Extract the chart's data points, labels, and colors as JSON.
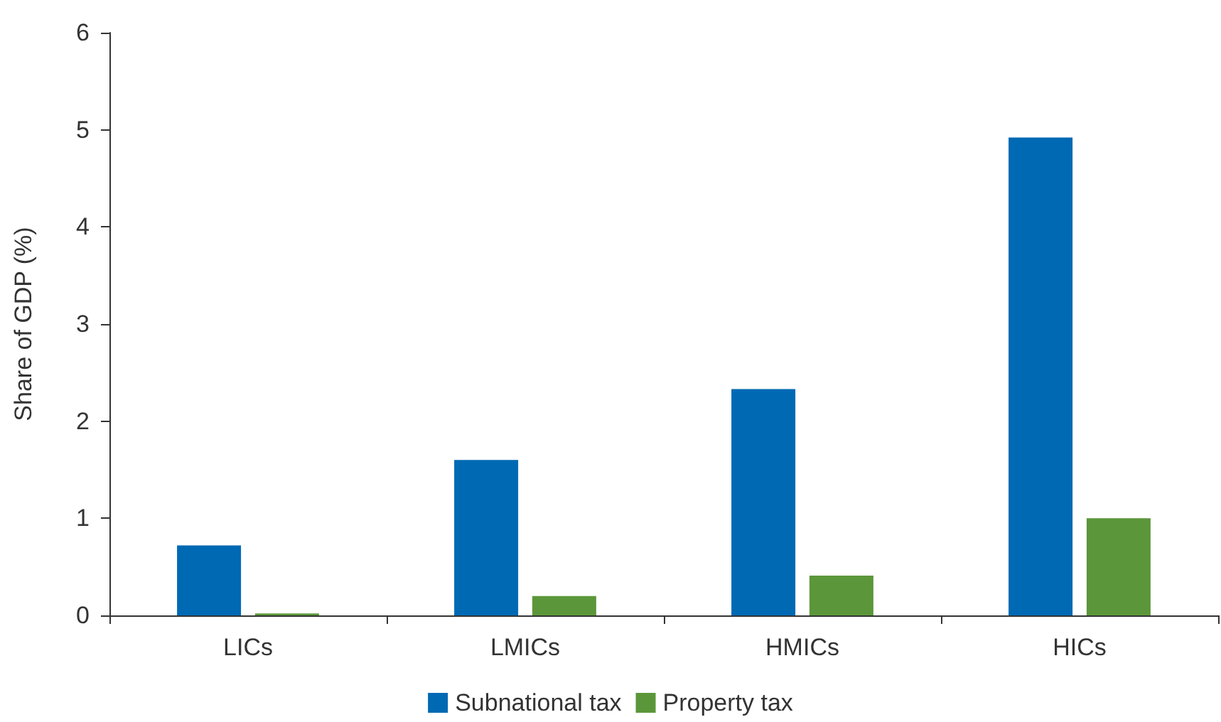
{
  "chart_data": {
    "type": "bar",
    "ylabel": "Share of GDP (%)",
    "categories": [
      "LICs",
      "LMICs",
      "HMICs",
      "HICs"
    ],
    "series": [
      {
        "name": "Subnational tax",
        "color": "#0069b4",
        "values": [
          0.72,
          1.6,
          2.33,
          4.92
        ]
      },
      {
        "name": "Property tax",
        "color": "#5b973a",
        "values": [
          0.02,
          0.2,
          0.41,
          1.0
        ]
      }
    ],
    "ylim": [
      0,
      6
    ],
    "yticks": [
      0,
      1,
      2,
      3,
      4,
      5,
      6
    ],
    "grid": false,
    "legend": "bottom"
  }
}
